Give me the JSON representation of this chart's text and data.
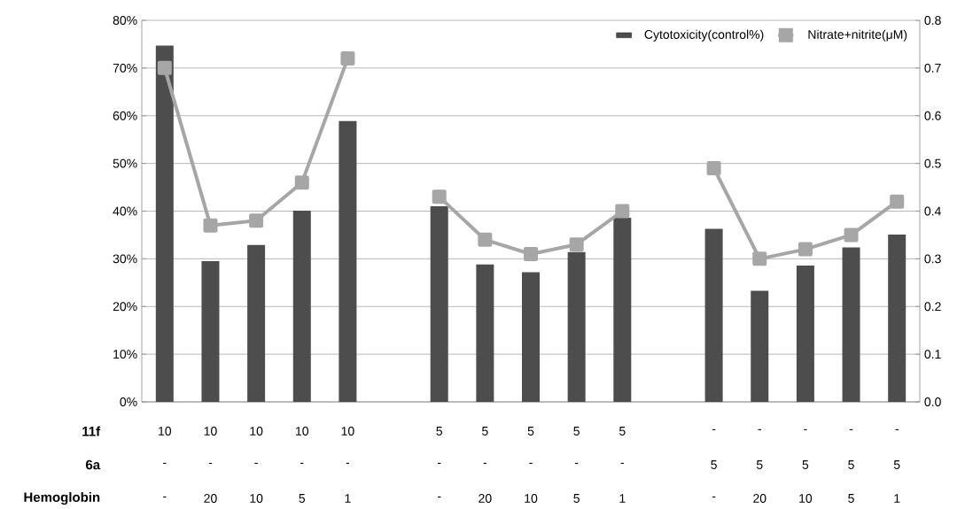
{
  "chart_data": {
    "type": "bar",
    "categories": [
      null,
      null,
      null,
      null,
      null,
      null,
      null,
      null,
      null,
      null,
      null,
      null,
      null,
      null,
      null,
      null,
      null
    ],
    "series": [
      {
        "name": "Cytotoxicity(control%)",
        "color": "#4d4d4d",
        "values": [
          74.7,
          29.5,
          32.9,
          40.1,
          58.9,
          null,
          41.0,
          28.8,
          27.2,
          31.4,
          38.6,
          null,
          36.3,
          23.3,
          28.6,
          32.4,
          35.1
        ]
      },
      {
        "name": "Nitrate+nitrite(μM)",
        "type": "line",
        "axis": "y2",
        "color": "#a6a6a6",
        "values": [
          0.7,
          0.37,
          0.38,
          0.46,
          0.72,
          null,
          0.43,
          0.34,
          0.31,
          0.33,
          0.4,
          null,
          0.49,
          0.3,
          0.32,
          0.35,
          0.42
        ]
      }
    ],
    "ylim": [
      0,
      80
    ],
    "yticks": [
      {
        "value": 0,
        "label": "0%"
      },
      {
        "value": 10,
        "label": "10%"
      },
      {
        "value": 20,
        "label": "20%"
      },
      {
        "value": 30,
        "label": "30%"
      },
      {
        "value": 40,
        "label": "40%"
      },
      {
        "value": 50,
        "label": "50%"
      },
      {
        "value": 60,
        "label": "60%"
      },
      {
        "value": 70,
        "label": "70%"
      },
      {
        "value": 80,
        "label": "80%"
      }
    ],
    "y2lim": [
      0,
      0.8
    ],
    "y2ticks": [
      {
        "value": 0,
        "label": "0.0"
      },
      0.1,
      0.2,
      0.3,
      0.4,
      0.5,
      0.6,
      0.7,
      0.8
    ],
    "grid": "y",
    "legend": "top right",
    "marker": "square",
    "annotations": [
      "11f",
      "6a",
      "Hemoglobin",
      "10",
      "10",
      "10",
      "10",
      "10",
      "5",
      "5",
      "5",
      "5",
      "5",
      "-",
      "-",
      "-",
      "-",
      "-",
      "-",
      "-",
      "-",
      "-",
      "-",
      "-",
      "-",
      "-",
      "-",
      "-",
      "5",
      "5",
      "5",
      "5",
      "5",
      "-",
      "20",
      "10",
      "5",
      "1",
      "-",
      "20",
      "10",
      "5",
      "1",
      "-",
      "20",
      "10",
      "5",
      "1"
    ]
  }
}
